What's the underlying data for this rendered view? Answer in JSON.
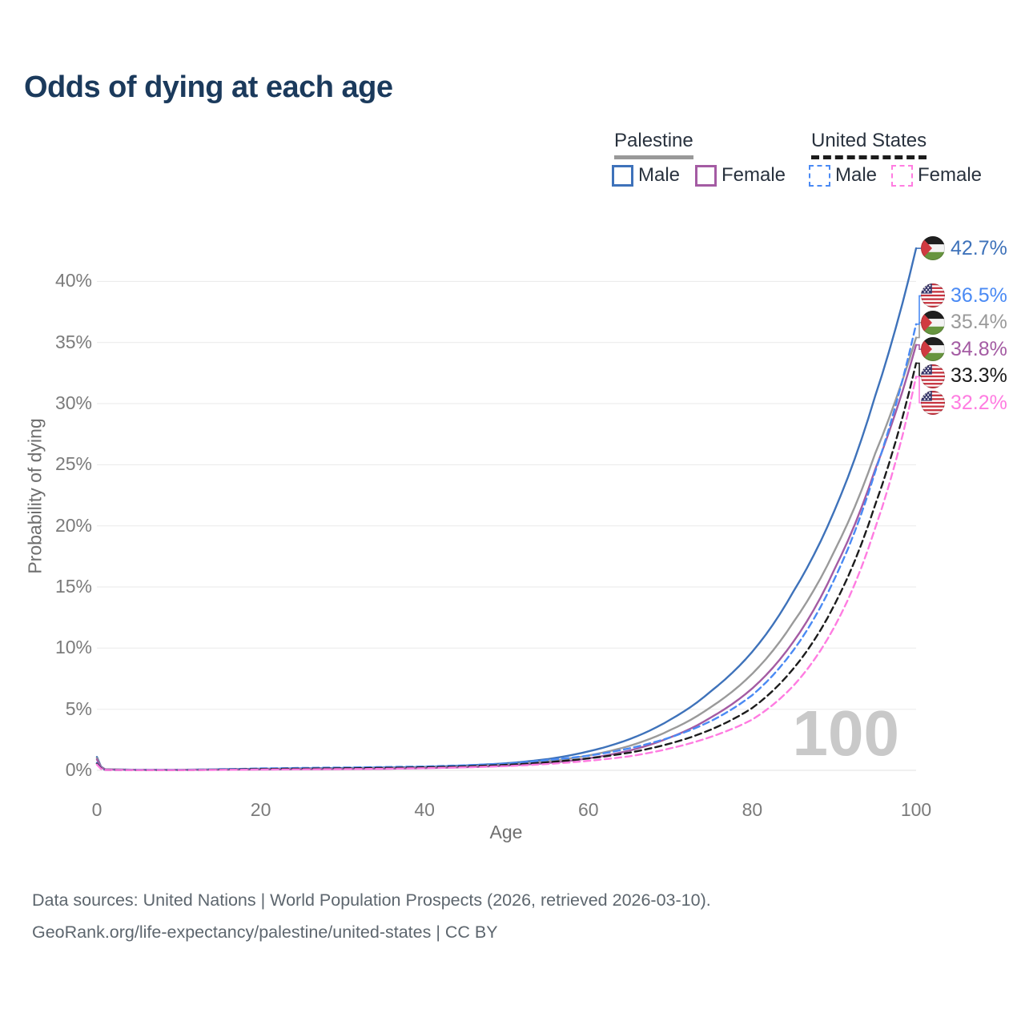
{
  "title": "Odds of dying at each age",
  "legend": {
    "groups": [
      {
        "country": "Palestine",
        "line_style": "solid",
        "underline_color": "#999999",
        "items": [
          {
            "label": "Male",
            "series_id": "palestine-male"
          },
          {
            "label": "Female",
            "series_id": "palestine-female"
          }
        ]
      },
      {
        "country": "United States",
        "line_style": "dashed",
        "underline_color": "#1c1c1c",
        "items": [
          {
            "label": "Male",
            "series_id": "united-states-male"
          },
          {
            "label": "Female",
            "series_id": "united-states-female"
          }
        ]
      }
    ]
  },
  "chart_data": {
    "type": "line",
    "title": "Odds of dying at each age",
    "xlabel": "Age",
    "ylabel": "Probability of dying",
    "xlim": [
      0,
      100
    ],
    "ylim_percent": [
      0,
      43
    ],
    "grid": "horizontal",
    "legend_position": "top-right",
    "age_counter": "100",
    "x_ticks": [
      {
        "value": 0,
        "label": "0"
      },
      {
        "value": 20,
        "label": "20"
      },
      {
        "value": 40,
        "label": "40"
      },
      {
        "value": 60,
        "label": "60"
      },
      {
        "value": 80,
        "label": "80"
      },
      {
        "value": 100,
        "label": "100"
      }
    ],
    "y_ticks": [
      {
        "value": 0,
        "label": "0%"
      },
      {
        "value": 5,
        "label": "5%"
      },
      {
        "value": 10,
        "label": "10%"
      },
      {
        "value": 15,
        "label": "15%"
      },
      {
        "value": 20,
        "label": "20%"
      },
      {
        "value": 25,
        "label": "25%"
      },
      {
        "value": 30,
        "label": "30%"
      },
      {
        "value": 35,
        "label": "35%"
      },
      {
        "value": 40,
        "label": "40%"
      }
    ],
    "ages": [
      0,
      1,
      5,
      10,
      15,
      20,
      25,
      30,
      35,
      40,
      45,
      50,
      55,
      60,
      65,
      70,
      75,
      80,
      85,
      90,
      95,
      100
    ],
    "series": [
      {
        "id": "palestine-male",
        "name": "Palestine Male",
        "color": "#3e72ba",
        "dash": "solid",
        "flag": "palestine",
        "end_label": "42.7%",
        "values_percent": [
          1.1,
          0.09,
          0.05,
          0.05,
          0.09,
          0.13,
          0.16,
          0.19,
          0.23,
          0.28,
          0.4,
          0.58,
          0.92,
          1.55,
          2.55,
          4.15,
          6.5,
          9.7,
          14.6,
          21.2,
          30.6,
          42.7
        ]
      },
      {
        "id": "palestine",
        "name": "Palestine",
        "color": "#9a9a9a",
        "dash": "solid",
        "flag": "palestine",
        "end_label": "35.4%",
        "values_percent": [
          1.0,
          0.08,
          0.04,
          0.04,
          0.07,
          0.1,
          0.12,
          0.14,
          0.18,
          0.23,
          0.32,
          0.47,
          0.74,
          1.22,
          2.0,
          3.3,
          5.2,
          7.9,
          12.1,
          17.9,
          25.9,
          35.4
        ]
      },
      {
        "id": "palestine-female",
        "name": "Palestine Female",
        "color": "#a45ba3",
        "dash": "solid",
        "flag": "palestine",
        "end_label": "34.8%",
        "values_percent": [
          0.9,
          0.07,
          0.04,
          0.04,
          0.05,
          0.07,
          0.09,
          0.11,
          0.13,
          0.18,
          0.26,
          0.38,
          0.6,
          0.98,
          1.62,
          2.7,
          4.35,
          6.7,
          10.5,
          16.4,
          24.6,
          34.8
        ]
      },
      {
        "id": "united-states-male",
        "name": "United States Male",
        "color": "#4a8af4",
        "dash": "dashed",
        "flag": "us",
        "end_label": "36.5%",
        "values_percent": [
          0.6,
          0.04,
          0.03,
          0.03,
          0.09,
          0.16,
          0.2,
          0.23,
          0.27,
          0.32,
          0.42,
          0.56,
          0.84,
          1.2,
          1.8,
          2.7,
          4.05,
          6.15,
          9.8,
          15.6,
          24.4,
          36.5
        ]
      },
      {
        "id": "united-states",
        "name": "United States",
        "color": "#1c1c1c",
        "dash": "dashed",
        "flag": "us",
        "end_label": "33.3%",
        "values_percent": [
          0.55,
          0.04,
          0.02,
          0.02,
          0.06,
          0.11,
          0.14,
          0.17,
          0.2,
          0.25,
          0.33,
          0.45,
          0.66,
          0.98,
          1.45,
          2.2,
          3.35,
          5.1,
          8.3,
          13.5,
          21.7,
          33.3
        ]
      },
      {
        "id": "united-states-female",
        "name": "United States Female",
        "color": "#ff7ce1",
        "dash": "dashed",
        "flag": "us",
        "end_label": "32.2%",
        "values_percent": [
          0.48,
          0.03,
          0.02,
          0.02,
          0.04,
          0.06,
          0.08,
          0.1,
          0.13,
          0.18,
          0.25,
          0.35,
          0.52,
          0.78,
          1.15,
          1.8,
          2.75,
          4.15,
          6.9,
          11.7,
          19.8,
          32.2
        ]
      }
    ]
  },
  "footer": {
    "line1": "Data sources: United Nations | World Population Prospects (2026, retrieved 2026-03-10).",
    "line2": "GeoRank.org/life-expectancy/palestine/united-states | CC BY"
  }
}
